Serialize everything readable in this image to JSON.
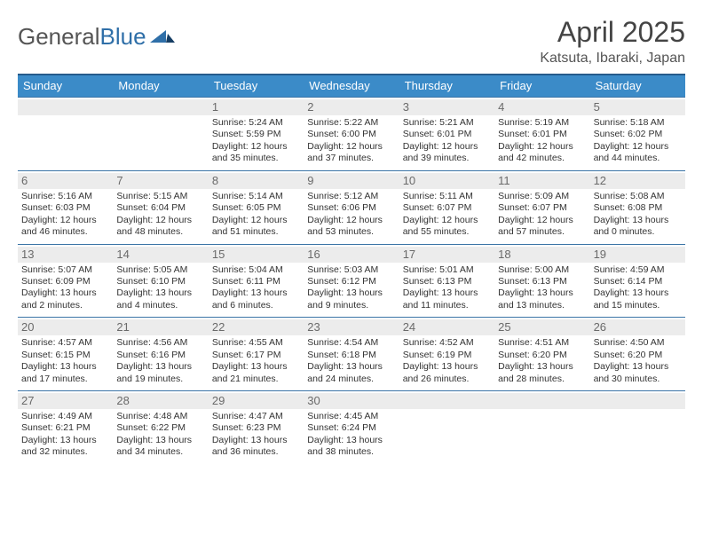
{
  "brand": {
    "name_part1": "General",
    "name_part2": "Blue"
  },
  "title": "April 2025",
  "location": "Katsuta, Ibaraki, Japan",
  "colors": {
    "header_bg": "#3b8bc8",
    "border_top": "#265b8b",
    "week_border": "#3b74a6",
    "daynum_bg": "#ececec",
    "text": "#333333",
    "brand_gray": "#555555",
    "brand_blue": "#2f6fa8"
  },
  "dow": [
    "Sunday",
    "Monday",
    "Tuesday",
    "Wednesday",
    "Thursday",
    "Friday",
    "Saturday"
  ],
  "weeks": [
    [
      {
        "n": "",
        "sr": "",
        "ss": "",
        "dl": ""
      },
      {
        "n": "",
        "sr": "",
        "ss": "",
        "dl": ""
      },
      {
        "n": "1",
        "sr": "5:24 AM",
        "ss": "5:59 PM",
        "dl": "12 hours and 35 minutes."
      },
      {
        "n": "2",
        "sr": "5:22 AM",
        "ss": "6:00 PM",
        "dl": "12 hours and 37 minutes."
      },
      {
        "n": "3",
        "sr": "5:21 AM",
        "ss": "6:01 PM",
        "dl": "12 hours and 39 minutes."
      },
      {
        "n": "4",
        "sr": "5:19 AM",
        "ss": "6:01 PM",
        "dl": "12 hours and 42 minutes."
      },
      {
        "n": "5",
        "sr": "5:18 AM",
        "ss": "6:02 PM",
        "dl": "12 hours and 44 minutes."
      }
    ],
    [
      {
        "n": "6",
        "sr": "5:16 AM",
        "ss": "6:03 PM",
        "dl": "12 hours and 46 minutes."
      },
      {
        "n": "7",
        "sr": "5:15 AM",
        "ss": "6:04 PM",
        "dl": "12 hours and 48 minutes."
      },
      {
        "n": "8",
        "sr": "5:14 AM",
        "ss": "6:05 PM",
        "dl": "12 hours and 51 minutes."
      },
      {
        "n": "9",
        "sr": "5:12 AM",
        "ss": "6:06 PM",
        "dl": "12 hours and 53 minutes."
      },
      {
        "n": "10",
        "sr": "5:11 AM",
        "ss": "6:07 PM",
        "dl": "12 hours and 55 minutes."
      },
      {
        "n": "11",
        "sr": "5:09 AM",
        "ss": "6:07 PM",
        "dl": "12 hours and 57 minutes."
      },
      {
        "n": "12",
        "sr": "5:08 AM",
        "ss": "6:08 PM",
        "dl": "13 hours and 0 minutes."
      }
    ],
    [
      {
        "n": "13",
        "sr": "5:07 AM",
        "ss": "6:09 PM",
        "dl": "13 hours and 2 minutes."
      },
      {
        "n": "14",
        "sr": "5:05 AM",
        "ss": "6:10 PM",
        "dl": "13 hours and 4 minutes."
      },
      {
        "n": "15",
        "sr": "5:04 AM",
        "ss": "6:11 PM",
        "dl": "13 hours and 6 minutes."
      },
      {
        "n": "16",
        "sr": "5:03 AM",
        "ss": "6:12 PM",
        "dl": "13 hours and 9 minutes."
      },
      {
        "n": "17",
        "sr": "5:01 AM",
        "ss": "6:13 PM",
        "dl": "13 hours and 11 minutes."
      },
      {
        "n": "18",
        "sr": "5:00 AM",
        "ss": "6:13 PM",
        "dl": "13 hours and 13 minutes."
      },
      {
        "n": "19",
        "sr": "4:59 AM",
        "ss": "6:14 PM",
        "dl": "13 hours and 15 minutes."
      }
    ],
    [
      {
        "n": "20",
        "sr": "4:57 AM",
        "ss": "6:15 PM",
        "dl": "13 hours and 17 minutes."
      },
      {
        "n": "21",
        "sr": "4:56 AM",
        "ss": "6:16 PM",
        "dl": "13 hours and 19 minutes."
      },
      {
        "n": "22",
        "sr": "4:55 AM",
        "ss": "6:17 PM",
        "dl": "13 hours and 21 minutes."
      },
      {
        "n": "23",
        "sr": "4:54 AM",
        "ss": "6:18 PM",
        "dl": "13 hours and 24 minutes."
      },
      {
        "n": "24",
        "sr": "4:52 AM",
        "ss": "6:19 PM",
        "dl": "13 hours and 26 minutes."
      },
      {
        "n": "25",
        "sr": "4:51 AM",
        "ss": "6:20 PM",
        "dl": "13 hours and 28 minutes."
      },
      {
        "n": "26",
        "sr": "4:50 AM",
        "ss": "6:20 PM",
        "dl": "13 hours and 30 minutes."
      }
    ],
    [
      {
        "n": "27",
        "sr": "4:49 AM",
        "ss": "6:21 PM",
        "dl": "13 hours and 32 minutes."
      },
      {
        "n": "28",
        "sr": "4:48 AM",
        "ss": "6:22 PM",
        "dl": "13 hours and 34 minutes."
      },
      {
        "n": "29",
        "sr": "4:47 AM",
        "ss": "6:23 PM",
        "dl": "13 hours and 36 minutes."
      },
      {
        "n": "30",
        "sr": "4:45 AM",
        "ss": "6:24 PM",
        "dl": "13 hours and 38 minutes."
      },
      {
        "n": "",
        "sr": "",
        "ss": "",
        "dl": ""
      },
      {
        "n": "",
        "sr": "",
        "ss": "",
        "dl": ""
      },
      {
        "n": "",
        "sr": "",
        "ss": "",
        "dl": ""
      }
    ]
  ],
  "labels": {
    "sunrise": "Sunrise:",
    "sunset": "Sunset:",
    "daylight": "Daylight:"
  }
}
